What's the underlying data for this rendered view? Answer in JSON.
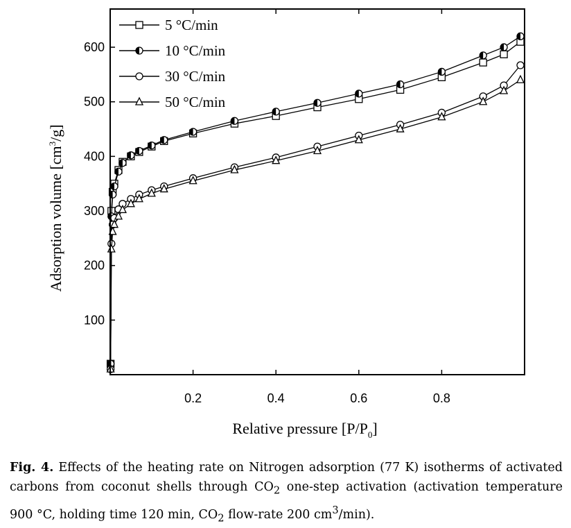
{
  "chart_data": {
    "type": "scatter",
    "title": "",
    "xlabel": "Relative pressure [P/P",
    "xlabel_sub": "0",
    "xlabel_end": "]",
    "ylabel": "Adsorption volume [cm",
    "ylabel_sup": "3",
    "ylabel_end": "/g]",
    "xlim": [
      0.0,
      1.0
    ],
    "ylim": [
      0,
      670
    ],
    "xticks": [
      0.2,
      0.4,
      0.6,
      0.8
    ],
    "xtick_labels": [
      "0.2",
      "0.4",
      "0.6",
      "0.8"
    ],
    "yticks": [
      100,
      200,
      300,
      400,
      500,
      600
    ],
    "ytick_labels": [
      "100",
      "200",
      "300",
      "400",
      "500",
      "600"
    ],
    "grid": false,
    "legend_position": "top-left",
    "series": [
      {
        "name": "5 °C/min",
        "marker": "square-open",
        "x": [
          0.001,
          0.003,
          0.006,
          0.01,
          0.02,
          0.03,
          0.05,
          0.07,
          0.1,
          0.13,
          0.2,
          0.3,
          0.4,
          0.5,
          0.6,
          0.7,
          0.8,
          0.9,
          0.95,
          0.99
        ],
        "y": [
          20,
          300,
          335,
          350,
          375,
          390,
          400,
          408,
          418,
          428,
          442,
          460,
          474,
          490,
          505,
          522,
          545,
          572,
          587,
          610
        ]
      },
      {
        "name": "10 °C/min",
        "marker": "circle-half",
        "x": [
          0.001,
          0.003,
          0.006,
          0.01,
          0.02,
          0.03,
          0.05,
          0.07,
          0.1,
          0.13,
          0.2,
          0.3,
          0.4,
          0.5,
          0.6,
          0.7,
          0.8,
          0.9,
          0.95,
          0.99
        ],
        "y": [
          20,
          290,
          330,
          345,
          372,
          388,
          402,
          410,
          420,
          430,
          445,
          465,
          482,
          498,
          515,
          532,
          555,
          585,
          600,
          620
        ]
      },
      {
        "name": "30 °C/min",
        "marker": "circle-open",
        "x": [
          0.001,
          0.003,
          0.006,
          0.01,
          0.02,
          0.03,
          0.05,
          0.07,
          0.1,
          0.13,
          0.2,
          0.3,
          0.4,
          0.5,
          0.6,
          0.7,
          0.8,
          0.9,
          0.95,
          0.99
        ],
        "y": [
          10,
          240,
          275,
          287,
          303,
          313,
          322,
          330,
          338,
          345,
          360,
          380,
          398,
          418,
          438,
          458,
          480,
          510,
          530,
          567
        ]
      },
      {
        "name": "50 °C/min",
        "marker": "triangle-open",
        "x": [
          0.001,
          0.003,
          0.006,
          0.01,
          0.02,
          0.03,
          0.05,
          0.07,
          0.1,
          0.13,
          0.2,
          0.3,
          0.4,
          0.5,
          0.6,
          0.7,
          0.8,
          0.9,
          0.95,
          0.99
        ],
        "y": [
          10,
          230,
          262,
          275,
          290,
          302,
          313,
          322,
          332,
          340,
          355,
          375,
          392,
          410,
          430,
          450,
          472,
          500,
          520,
          540
        ]
      }
    ]
  },
  "caption": {
    "label": "Fig. 4.",
    "text_1": " Effects of the heating rate on Nitrogen adsorption (77 K) isotherms of activated carbons from coconut shells through CO",
    "sub_1": "2",
    "text_2": " one-step activation (activation temperature 900 °C, holding time 120 min, CO",
    "sub_2": "2",
    "text_3": " flow-rate 200 cm",
    "sup_1": "3",
    "text_4": "/min)."
  }
}
